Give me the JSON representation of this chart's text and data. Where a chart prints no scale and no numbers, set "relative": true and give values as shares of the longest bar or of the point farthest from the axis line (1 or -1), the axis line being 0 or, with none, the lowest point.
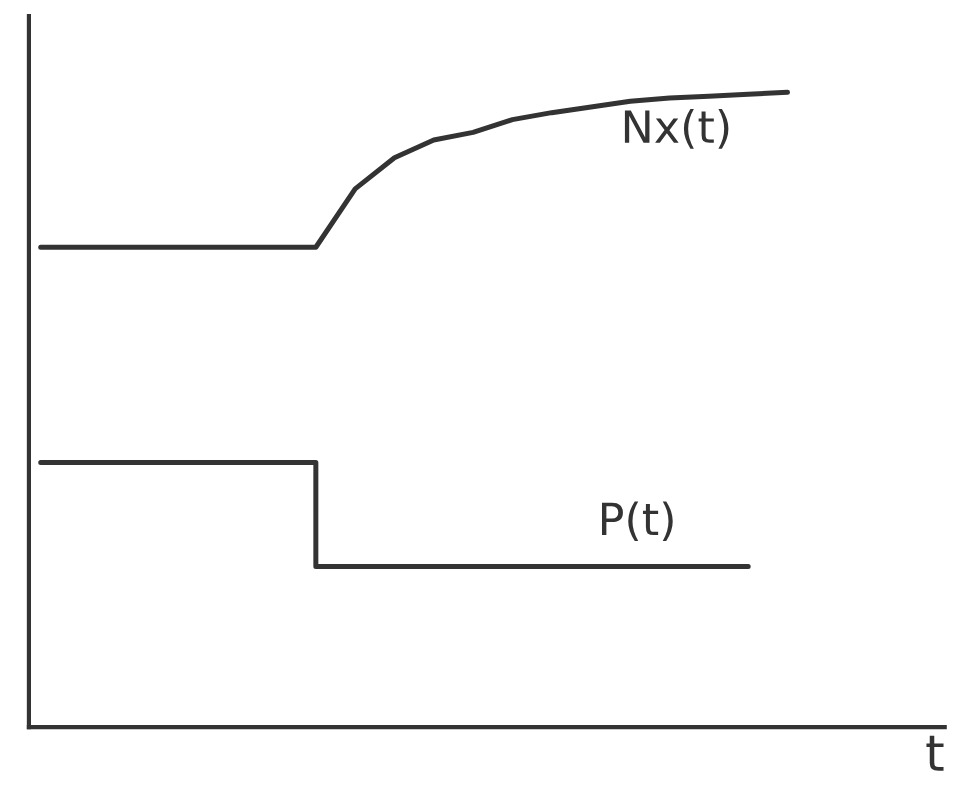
{
  "chart_data": {
    "type": "line",
    "relative": true,
    "xlabel": "t",
    "categories": [
      null,
      null,
      null,
      null,
      null,
      null,
      null,
      null,
      null,
      null,
      null,
      null,
      null,
      null,
      null,
      null,
      null,
      null,
      null,
      null
    ],
    "series": [
      {
        "name": "Nx(t)",
        "color": "#333333",
        "values": [
          0.756,
          0.756,
          0.756,
          0.756,
          0.756,
          0.756,
          0.756,
          0.756,
          0.848,
          0.897,
          0.925,
          0.937,
          0.957,
          0.968,
          0.977,
          0.986,
          0.991,
          0.994,
          0.997,
          1
        ]
      },
      {
        "name": "P(t)",
        "type": "step",
        "color": "#333333",
        "values": [
          0.417,
          0.417,
          0.417,
          0.417,
          0.417,
          0.417,
          0.417,
          0.253,
          0.253,
          0.253,
          0.253,
          0.253,
          0.253,
          0.253,
          0.253,
          0.253,
          0.253,
          0.253,
          0.253,
          null
        ]
      }
    ],
    "legend": false,
    "tick_labels": false
  }
}
